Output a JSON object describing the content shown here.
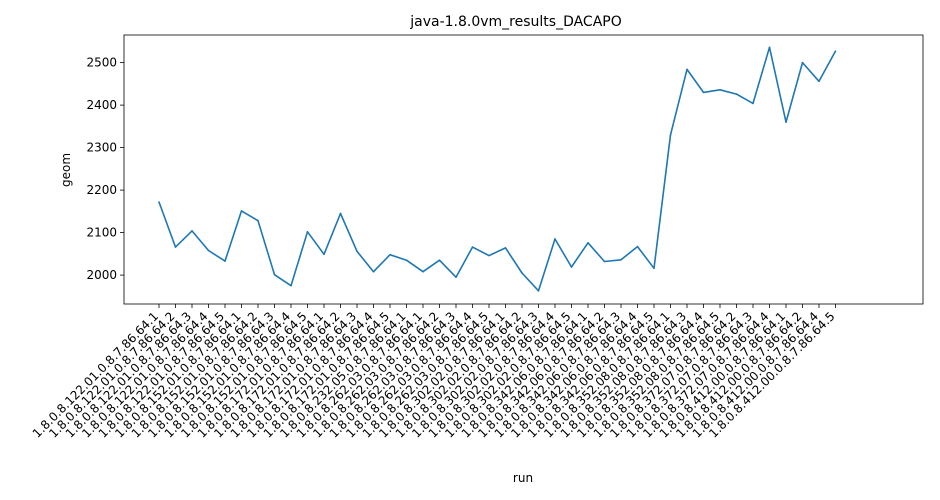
{
  "chart_data": {
    "type": "line",
    "title": "java-1.8.0vm_results_DACAPO",
    "xlabel": "run",
    "ylabel": "geom",
    "ylim": [
      1932,
      2565
    ],
    "yticks": [
      2000,
      2100,
      2200,
      2300,
      2400,
      2500
    ],
    "grid": false,
    "legend": "none",
    "line_color": "#1f77b4",
    "x": [
      "1.8.0.8.122.01.0.8.7.86.64.1",
      "1.8.0.8.122.01.0.8.7.86.64.2",
      "1.8.0.8.122.01.0.8.7.86.64.3",
      "1.8.0.8.122.01.0.8.7.86.64.4",
      "1.8.0.8.122.01.0.8.7.86.64.5",
      "1.8.0.8.152.01.0.8.7.86.64.1",
      "1.8.0.8.152.01.0.8.7.86.64.2",
      "1.8.0.8.152.01.0.8.7.86.64.3",
      "1.8.0.8.152.01.0.8.7.86.64.4",
      "1.8.0.8.152.01.0.8.7.86.64.5",
      "1.8.0.8.172.01.0.8.7.86.64.1",
      "1.8.0.8.172.01.0.8.7.86.64.2",
      "1.8.0.8.172.01.0.8.7.86.64.3",
      "1.8.0.8.172.01.0.8.7.86.64.4",
      "1.8.0.8.172.01.0.8.7.86.64.5",
      "1.8.0.8.232.05.0.8.7.86.64.1",
      "1.8.0.8.262.03.0.8.7.86.64.1",
      "1.8.0.8.262.03.0.8.7.86.64.2",
      "1.8.0.8.262.03.0.8.7.86.64.3",
      "1.8.0.8.262.03.0.8.7.86.64.4",
      "1.8.0.8.262.03.0.8.7.86.64.5",
      "1.8.0.8.302.02.0.8.7.86.64.1",
      "1.8.0.8.302.02.0.8.7.86.64.2",
      "1.8.0.8.302.02.0.8.7.86.64.3",
      "1.8.0.8.302.02.0.8.7.86.64.4",
      "1.8.0.8.302.02.0.8.7.86.64.5",
      "1.8.0.8.342.06.0.8.7.86.64.1",
      "1.8.0.8.342.06.0.8.7.86.64.2",
      "1.8.0.8.342.06.0.8.7.86.64.3",
      "1.8.0.8.342.06.0.8.7.86.64.4",
      "1.8.0.8.342.06.0.8.7.86.64.5",
      "1.8.0.8.352.08.0.8.7.86.64.1",
      "1.8.0.8.352.08.0.8.7.86.64.3",
      "1.8.0.8.352.08.0.8.7.86.64.4",
      "1.8.0.8.352.08.0.8.7.86.64.5",
      "1.8.0.8.372.07.0.8.7.86.64.2",
      "1.8.0.8.372.07.0.8.7.86.64.3",
      "1.8.0.8.372.07.0.8.7.86.64.4",
      "1.8.0.8.412.00.0.8.7.86.64.1",
      "1.8.0.8.412.00.0.8.7.86.64.2",
      "1.8.0.8.412.00.0.8.7.86.64.4",
      "1.8.0.8.412.00.0.8.7.86.64.5"
    ],
    "y": [
      2172,
      2066,
      2104,
      2058,
      2033,
      2151,
      2128,
      2001,
      1975,
      2102,
      2049,
      2145,
      2056,
      2008,
      2048,
      2035,
      2008,
      2035,
      1995,
      2066,
      2046,
      2064,
      2005,
      1963,
      2085,
      2019,
      2076,
      2032,
      2036,
      2067,
      2016,
      2330,
      2484,
      2430,
      2436,
      2426,
      2404,
      2536,
      2360,
      2500,
      2456,
      2527
    ]
  }
}
